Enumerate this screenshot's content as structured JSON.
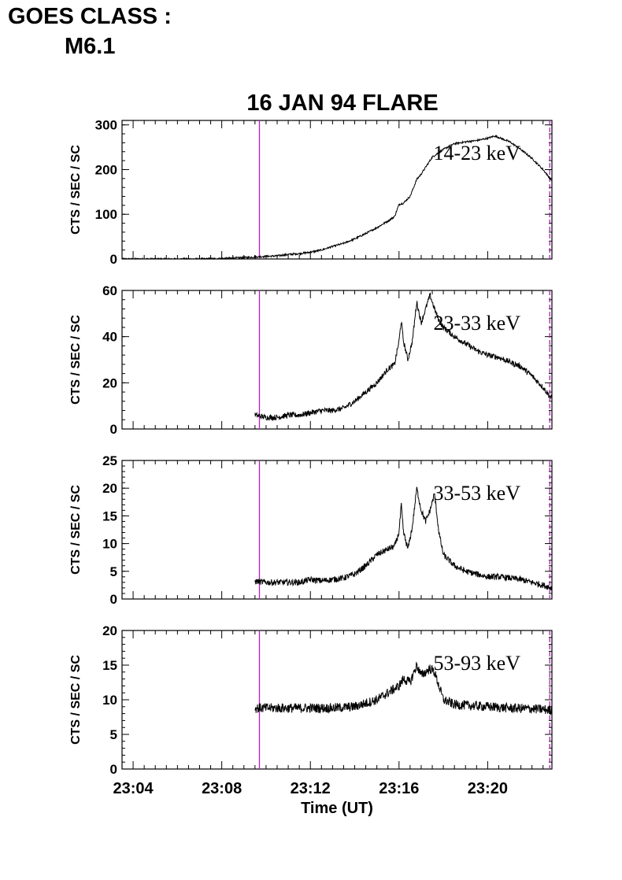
{
  "header": {
    "goes_label": "GOES CLASS :",
    "goes_value": "M6.1"
  },
  "colors": {
    "trace": "#000000",
    "marker": "#b020c0"
  },
  "chart_data": {
    "type": "line",
    "title": "16 JAN 94 FLARE",
    "xlabel": "Time (UT)",
    "x_tick_labels": [
      "23:04",
      "23:08",
      "23:12",
      "23:16",
      "23:20"
    ],
    "x_tick_minutes": [
      4,
      8,
      12,
      16,
      20
    ],
    "xlim_minutes_after_2300": [
      3.5,
      22.9
    ],
    "vertical_markers_minutes_after_2300": [
      9.7,
      22.8
    ],
    "panels": [
      {
        "band": "14-23 keV",
        "ylabel": "CTS / SEC / SC",
        "ylim": [
          0,
          310
        ],
        "y_ticks": [
          0,
          100,
          200,
          300
        ],
        "noise": 2,
        "series_t": [
          3.5,
          5,
          6,
          7,
          8,
          9,
          9.7,
          10.5,
          11,
          11.5,
          12,
          12.5,
          13,
          13.5,
          14,
          14.5,
          15,
          15.5,
          15.8,
          16,
          16.2,
          16.5,
          16.8,
          17,
          17.5,
          18,
          18.5,
          19,
          19.5,
          20,
          20.3,
          20.5,
          21,
          21.5,
          22,
          22.5,
          22.9
        ],
        "series_y": [
          0,
          0,
          0,
          0,
          1,
          3,
          5,
          7,
          10,
          12,
          15,
          20,
          28,
          35,
          45,
          57,
          70,
          85,
          95,
          122,
          125,
          140,
          178,
          190,
          228,
          245,
          258,
          262,
          265,
          270,
          275,
          272,
          262,
          245,
          225,
          200,
          175
        ]
      },
      {
        "band": "23-33 keV",
        "ylabel": "CTS / SEC / SC",
        "ylim": [
          0,
          60
        ],
        "y_ticks": [
          0,
          20,
          40,
          60
        ],
        "noise": 1.2,
        "series_t": [
          9.5,
          10,
          10.5,
          11,
          11.5,
          12,
          12.5,
          13,
          13.5,
          14,
          14.5,
          15,
          15.5,
          15.8,
          16,
          16.1,
          16.2,
          16.4,
          16.6,
          16.8,
          17,
          17.2,
          17.4,
          17.6,
          17.8,
          18,
          18.5,
          19,
          19.5,
          20,
          20.5,
          21,
          21.5,
          22,
          22.5,
          22.9
        ],
        "series_y": [
          6,
          5,
          5,
          6,
          6,
          7,
          8,
          8,
          9,
          12,
          16,
          20,
          26,
          28,
          38,
          47,
          38,
          30,
          38,
          55,
          46,
          52,
          58,
          52,
          47,
          44,
          40,
          37,
          34,
          32,
          31,
          29,
          27,
          23,
          18,
          13
        ]
      },
      {
        "band": "33-53 keV",
        "ylabel": "CTS / SEC / SC",
        "ylim": [
          0,
          25
        ],
        "y_ticks": [
          0,
          5,
          10,
          15,
          20,
          25
        ],
        "noise": 0.55,
        "series_t": [
          9.5,
          10,
          11,
          11.5,
          12,
          12.5,
          13,
          13.5,
          14,
          14.5,
          15,
          15.5,
          15.8,
          16,
          16.1,
          16.2,
          16.4,
          16.6,
          16.8,
          17,
          17.2,
          17.4,
          17.6,
          17.8,
          18,
          18.5,
          19,
          19.5,
          20,
          20.5,
          21,
          21.5,
          22,
          22.5,
          22.9
        ],
        "series_y": [
          3.2,
          3,
          3,
          3,
          3.5,
          3.3,
          3.5,
          3.8,
          4.5,
          6,
          8,
          9,
          9.5,
          12,
          17,
          12,
          9,
          13,
          20,
          16,
          14,
          16,
          19,
          12,
          8,
          6,
          5,
          4.5,
          4,
          4,
          3.8,
          3.5,
          3,
          2.5,
          2
        ]
      },
      {
        "band": "53-93 keV",
        "ylabel": "CTS / SEC / SC",
        "ylim": [
          0,
          20
        ],
        "y_ticks": [
          0,
          5,
          10,
          15,
          20
        ],
        "noise": 0.7,
        "series_t": [
          9.5,
          10,
          11,
          12,
          13,
          14,
          14.5,
          15,
          15.5,
          16,
          16.2,
          16.5,
          16.8,
          17,
          17.2,
          17.4,
          17.6,
          17.8,
          18,
          18.5,
          19,
          20,
          21,
          22,
          22.9
        ],
        "series_y": [
          8.8,
          8.8,
          8.8,
          8.8,
          8.8,
          9,
          9.5,
          10,
          11,
          12,
          13,
          12.5,
          15,
          13.5,
          14,
          14.5,
          14,
          12,
          10,
          9.3,
          9.2,
          9,
          8.8,
          8.7,
          8.5
        ]
      }
    ]
  }
}
